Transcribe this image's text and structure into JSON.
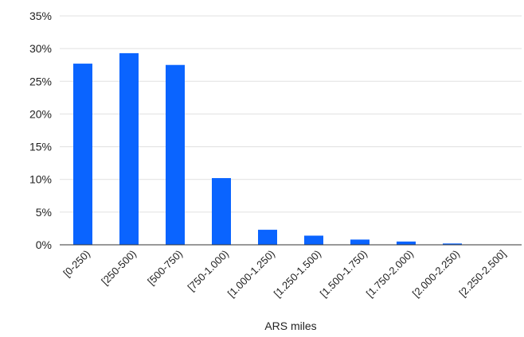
{
  "chart_data": {
    "type": "bar",
    "xlabel": "ARS miles",
    "ylabel": "",
    "title": "",
    "y_unit": "%",
    "ylim": [
      0,
      35
    ],
    "yticks": [
      0,
      5,
      10,
      15,
      20,
      25,
      30,
      35
    ],
    "ytick_labels": [
      "0%",
      "5%",
      "10%",
      "15%",
      "20%",
      "25%",
      "30%",
      "35%"
    ],
    "grid": true,
    "legend": "none",
    "bar_color": "#0a64ff",
    "categories": [
      "[0-250)",
      "[250-500)",
      "[500-750)",
      "[750-1.000)",
      "[1.000-1.250)",
      "[1.250-1.500)",
      "[1.500-1.750)",
      "[1.750-2.000)",
      "[2.000-2.250)",
      "[2.250-2.500]"
    ],
    "values": [
      27.7,
      29.3,
      27.5,
      10.2,
      2.3,
      1.4,
      0.8,
      0.5,
      0.2,
      0.0
    ]
  }
}
